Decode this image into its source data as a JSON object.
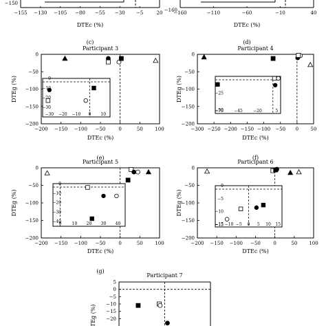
{
  "top_partial": {
    "left": {
      "xlabel": "DTEc (%)",
      "xticks": [
        "−155",
        "−130",
        "−105",
        "−80",
        "−55",
        "−30",
        "−5",
        "20"
      ],
      "yticks": [
        "−150"
      ],
      "caption": "(c)"
    },
    "right": {
      "xlabel": "DTEc (%)",
      "xticks": [
        "−160",
        "−110",
        "−60",
        "−10",
        "40"
      ],
      "yticks": [
        "−160"
      ],
      "caption": "(d)"
    }
  },
  "chart_data": [
    {
      "type": "scatter",
      "title": "Participant 3",
      "xlabel": "DTEc (%)",
      "ylabel": "DTEg (%)",
      "xlim": [
        -200,
        100
      ],
      "ylim": [
        -200,
        0
      ],
      "xticks": [
        "−200",
        "−150",
        "−100",
        "−50",
        "0",
        "50",
        "100"
      ],
      "yticks": [
        "0",
        "−50",
        "−100",
        "−150",
        "−200"
      ],
      "points": [
        {
          "marker": "filled-triangle",
          "x": -140,
          "y": -12
        },
        {
          "marker": "filled-circle",
          "x": -30,
          "y": -12
        },
        {
          "marker": "open-square",
          "x": -30,
          "y": -22
        },
        {
          "marker": "open-circle",
          "x": -3,
          "y": -22
        },
        {
          "marker": "filled-square",
          "x": 3,
          "y": -12
        },
        {
          "marker": "open-triangle",
          "x": 90,
          "y": -18
        }
      ],
      "inset": {
        "xlim": [
          -35,
          15
        ],
        "ylim": [
          -40,
          0
        ],
        "xticks": [
          "−30",
          "−20",
          "−10",
          "0",
          "10"
        ],
        "yticks": [
          "0",
          "−10",
          "−20",
          "−30"
        ],
        "points": [
          {
            "marker": "filled-circle",
            "x": -30,
            "y": -12
          },
          {
            "marker": "filled-square",
            "x": 3,
            "y": -10
          },
          {
            "marker": "open-square",
            "x": -31,
            "y": -23
          },
          {
            "marker": "open-circle",
            "x": -3,
            "y": -23
          }
        ]
      },
      "caption": "(e)"
    },
    {
      "type": "scatter",
      "title": "Participant 4",
      "xlabel": "DTEc (%)",
      "ylabel": "DTEg (%)",
      "xlim": [
        -300,
        50
      ],
      "ylim": [
        -200,
        0
      ],
      "xticks": [
        "−300",
        "−250",
        "−200",
        "−150",
        "−100",
        "−50",
        "0",
        "50"
      ],
      "yticks": [
        "0",
        "−50",
        "−100",
        "−150",
        "−200"
      ],
      "points": [
        {
          "marker": "filled-triangle",
          "x": -280,
          "y": -8
        },
        {
          "marker": "filled-square",
          "x": -72,
          "y": -12
        },
        {
          "marker": "filled-circle",
          "x": 2,
          "y": -10
        },
        {
          "marker": "open-circle",
          "x": 10,
          "y": -4
        },
        {
          "marker": "open-square",
          "x": 4,
          "y": -3
        },
        {
          "marker": "open-triangle",
          "x": 40,
          "y": -30
        }
      ],
      "inset": {
        "xlim": [
          -75,
          10
        ],
        "ylim": [
          -55,
          0
        ],
        "xticks": [
          "−70",
          "−45",
          "−20",
          "5"
        ],
        "yticks": [
          "−25",
          "−50"
        ],
        "points": [
          {
            "marker": "filled-square",
            "x": -72,
            "y": -12
          },
          {
            "marker": "open-square",
            "x": 2,
            "y": -3
          },
          {
            "marker": "open-circle",
            "x": 7,
            "y": -3
          },
          {
            "marker": "filled-circle",
            "x": 3,
            "y": -13
          }
        ]
      },
      "caption": "(f)"
    },
    {
      "type": "scatter",
      "title": "Participant 5",
      "xlabel": "DTEc (%)",
      "ylabel": "DTEg (%)",
      "xlim": [
        -200,
        100
      ],
      "ylim": [
        -200,
        0
      ],
      "xticks": [
        "−200",
        "−150",
        "−100",
        "−50",
        "0",
        "50",
        "100"
      ],
      "yticks": [
        "0",
        "−50",
        "−100",
        "−150",
        "−200"
      ],
      "points": [
        {
          "marker": "open-triangle",
          "x": -185,
          "y": -15
        },
        {
          "marker": "filled-square",
          "x": 20,
          "y": -35
        },
        {
          "marker": "open-square",
          "x": 28,
          "y": -5
        },
        {
          "marker": "filled-circle",
          "x": 35,
          "y": -12
        },
        {
          "marker": "open-circle",
          "x": 45,
          "y": -12
        },
        {
          "marker": "filled-triangle",
          "x": 72,
          "y": -12
        }
      ],
      "inset": {
        "xlim": [
          -5,
          45
        ],
        "ylim": [
          -45,
          0
        ],
        "xticks": [
          "0",
          "10",
          "20",
          "30",
          "40"
        ],
        "yticks": [
          "0",
          "−10",
          "−20",
          "−30",
          "−40"
        ],
        "points": [
          {
            "marker": "open-square",
            "x": 19,
            "y": -4
          },
          {
            "marker": "filled-circle",
            "x": 30,
            "y": -13
          },
          {
            "marker": "open-circle",
            "x": 39,
            "y": -13
          },
          {
            "marker": "filled-square",
            "x": 22,
            "y": -37
          }
        ]
      },
      "caption": "(g)"
    },
    {
      "type": "scatter",
      "title": "Participant 6",
      "xlabel": "DTEc (%)",
      "ylabel": "DTEg (%)",
      "xlim": [
        -200,
        100
      ],
      "ylim": [
        -200,
        0
      ],
      "xticks": [
        "−200",
        "−150",
        "−100",
        "−50",
        "0",
        "50",
        "100"
      ],
      "yticks": [
        "0",
        "−50",
        "−100",
        "−150",
        "−200"
      ],
      "points": [
        {
          "marker": "open-triangle",
          "x": -175,
          "y": -10
        },
        {
          "marker": "open-square",
          "x": -5,
          "y": -8
        },
        {
          "marker": "filled-square",
          "x": 2,
          "y": -6
        },
        {
          "marker": "filled-circle",
          "x": 5,
          "y": -4
        },
        {
          "marker": "filled-triangle",
          "x": 40,
          "y": -14
        },
        {
          "marker": "open-triangle",
          "x": 62,
          "y": -12
        }
      ],
      "inset": {
        "xlim": [
          -17,
          17
        ],
        "ylim": [
          -16,
          0
        ],
        "xticks": [
          "−15",
          "−10",
          "−5",
          "0",
          "5",
          "10",
          "15"
        ],
        "yticks": [
          "0",
          "−5",
          "−10",
          "−15"
        ],
        "points": [
          {
            "marker": "open-square",
            "x": -4,
            "y": -9
          },
          {
            "marker": "filled-circle",
            "x": 4,
            "y": -8.5
          },
          {
            "marker": "filled-square",
            "x": 7.5,
            "y": -7.5
          },
          {
            "marker": "open-circle",
            "x": -11,
            "y": -13
          }
        ]
      },
      "caption": ""
    },
    {
      "type": "scatter",
      "title": "Participant 7",
      "xlabel": "",
      "ylabel": "DTEg (%)",
      "xlim": [
        -50,
        50
      ],
      "ylim": [
        -25,
        5
      ],
      "xticks": [],
      "yticks": [
        "5",
        "0",
        "−5",
        "−10",
        "−15",
        "−20"
      ],
      "points": [
        {
          "marker": "filled-square",
          "x": -29,
          "y": -11
        },
        {
          "marker": "open-square",
          "x": -6,
          "y": -10
        },
        {
          "marker": "open-circle",
          "x": -5,
          "y": -11
        },
        {
          "marker": "filled-circle",
          "x": 3,
          "y": -23
        }
      ],
      "caption": ""
    }
  ]
}
